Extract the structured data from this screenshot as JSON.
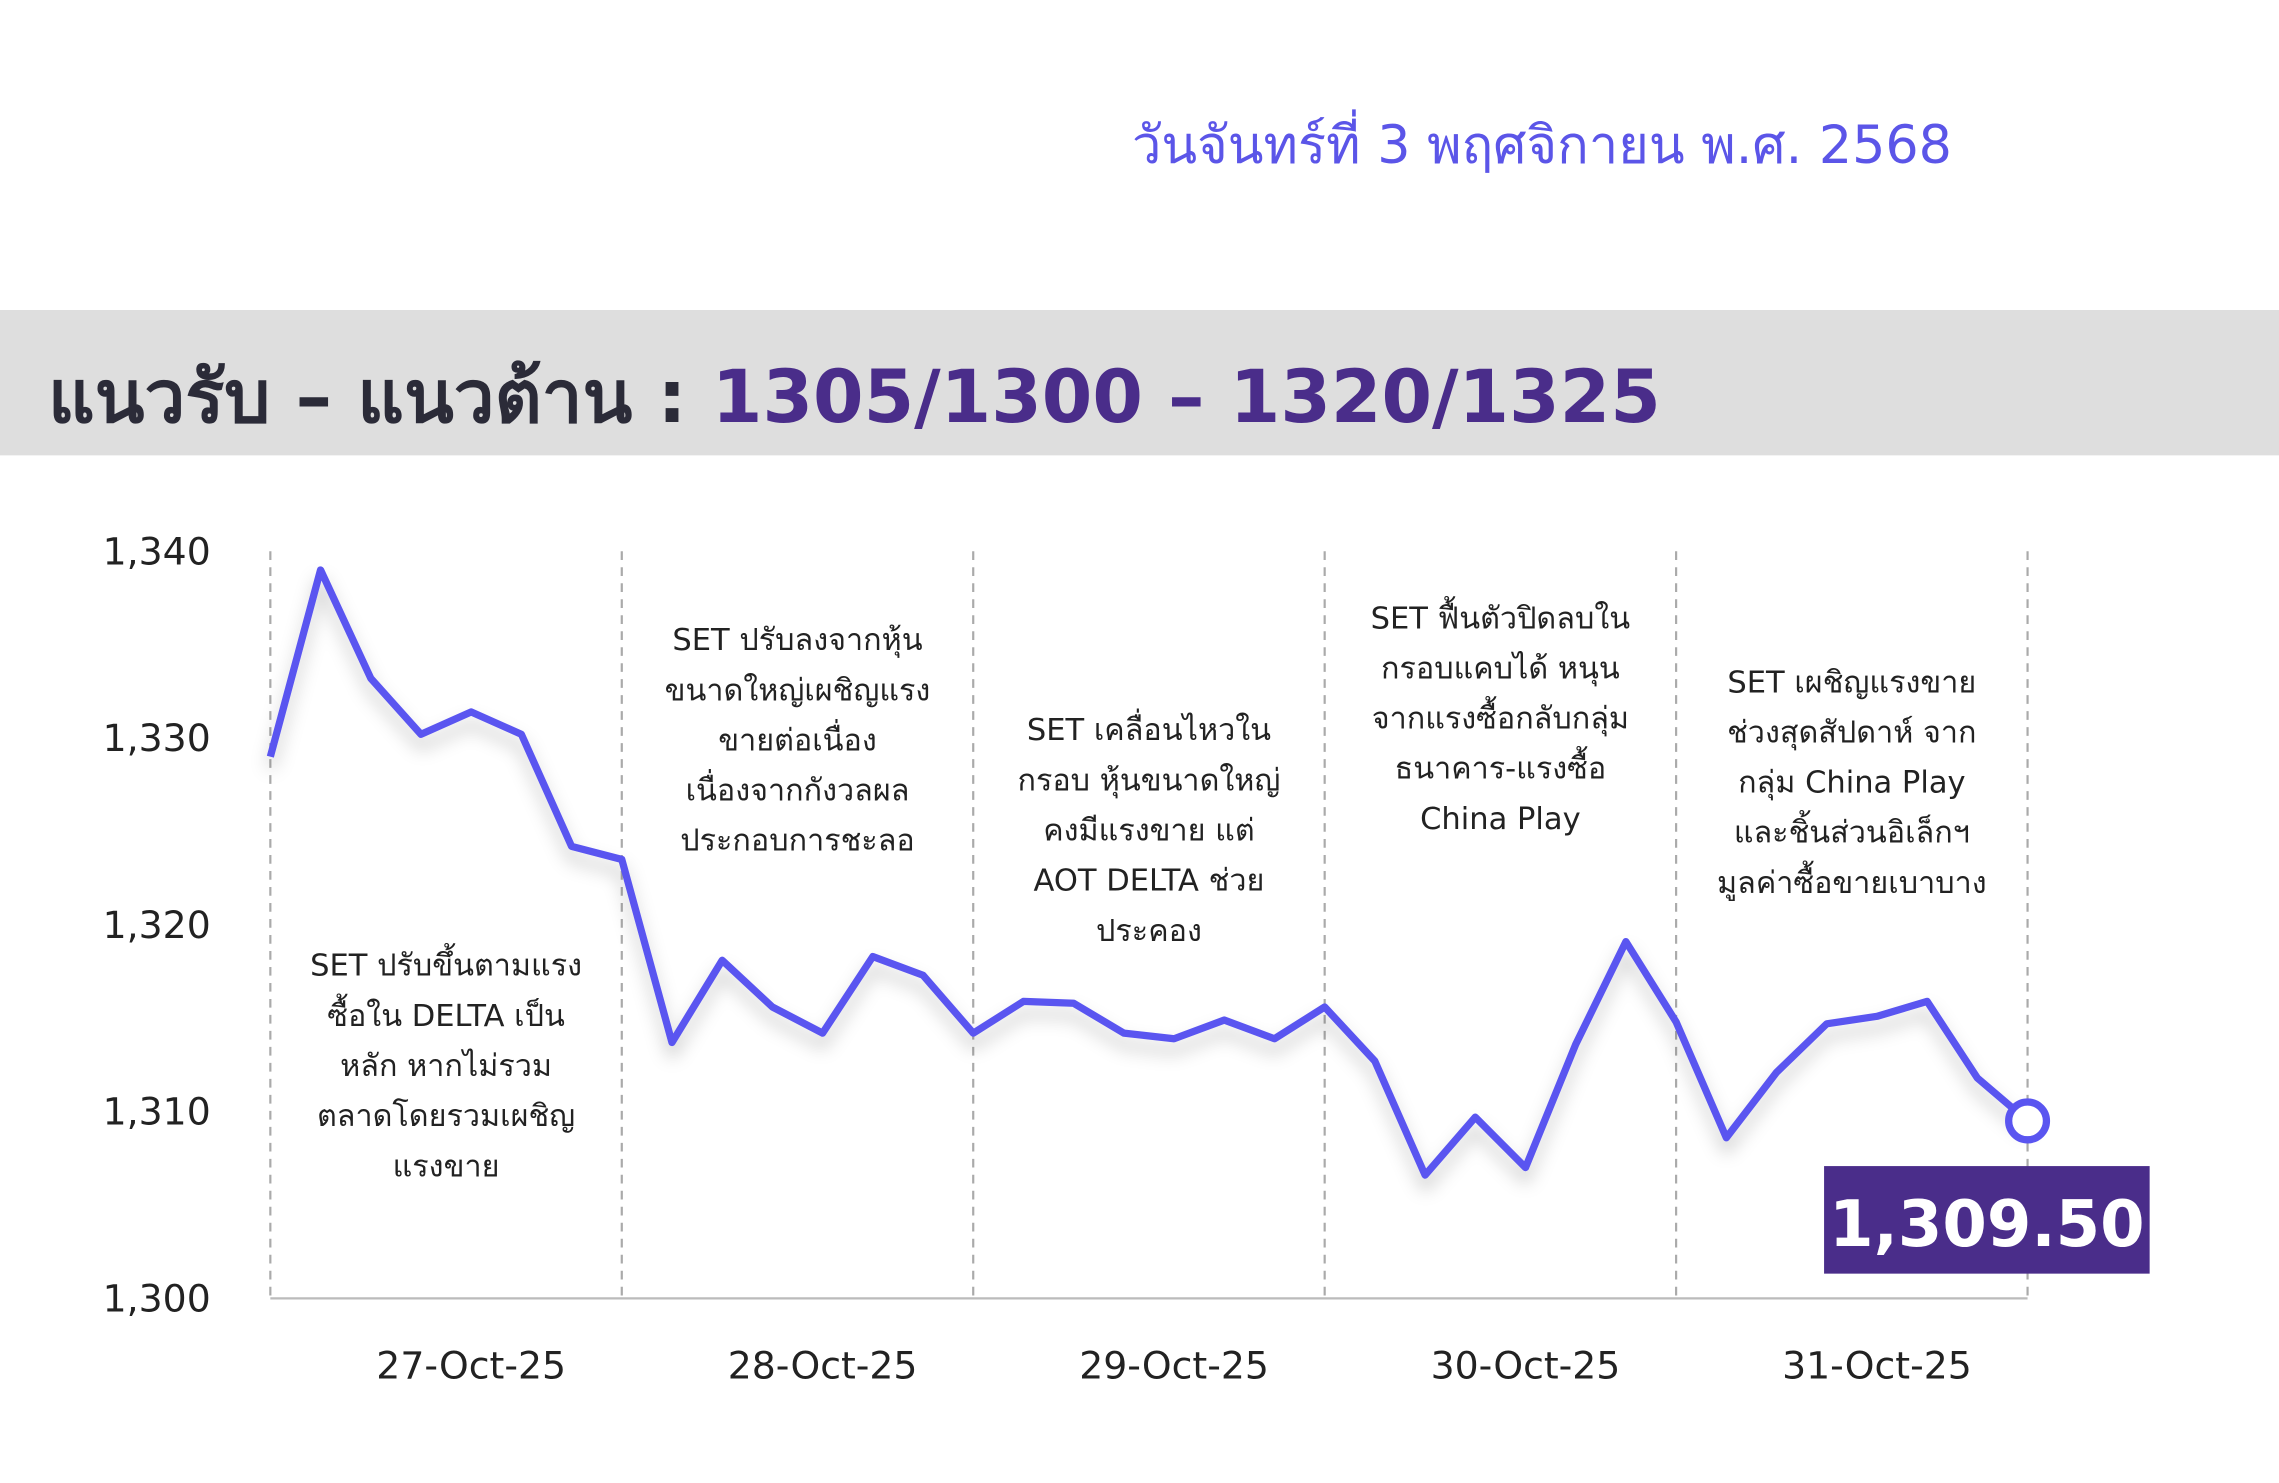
{
  "header": {
    "date": "วันจันทร์ที่ 3 พฤศจิกายน พ.ศ. 2568",
    "banner_label": "แนวรับ – แนวต้าน : ",
    "banner_value": "1305/1300 – 1320/1325"
  },
  "chart_data": {
    "type": "line",
    "categories": [
      null,
      null,
      null,
      null,
      "27-Oct-25",
      null,
      null,
      null,
      null,
      null,
      null,
      "28-Oct-25",
      null,
      null,
      null,
      null,
      null,
      null,
      "29-Oct-25",
      null,
      null,
      null,
      null,
      null,
      null,
      "30-Oct-25",
      null,
      null,
      null,
      null,
      null,
      null,
      "31-Oct-25",
      null,
      null,
      null
    ],
    "values": [
      1329.0,
      1339.0,
      1333.2,
      1330.2,
      1331.4,
      1330.2,
      1324.2,
      1323.5,
      1313.7,
      1318.1,
      1315.6,
      1314.2,
      1318.3,
      1317.3,
      1314.2,
      1315.9,
      1315.8,
      1314.2,
      1313.9,
      1314.9,
      1313.9,
      1315.6,
      1312.7,
      1306.6,
      1309.7,
      1307.0,
      1313.6,
      1319.1,
      1314.8,
      1308.6,
      1312.1,
      1314.7,
      1315.1,
      1315.9,
      1311.8,
      1309.5
    ],
    "value_labels": [
      null,
      null,
      null,
      null,
      null,
      null,
      null,
      null,
      null,
      null,
      null,
      null,
      null,
      null,
      null,
      null,
      null,
      null,
      null,
      null,
      null,
      null,
      null,
      null,
      null,
      null,
      null,
      null,
      null,
      null,
      null,
      null,
      null,
      null,
      null,
      "1,309.50"
    ],
    "color": "#5a55f0",
    "ylim": [
      1300,
      1340
    ],
    "yticks": [
      {
        "value": 1300,
        "label": "1,300"
      },
      {
        "value": 1310,
        "label": "1,310"
      },
      {
        "value": 1320,
        "label": "1,320"
      },
      {
        "value": 1330,
        "label": "1,330"
      },
      {
        "value": 1340,
        "label": "1,340"
      }
    ],
    "annotations": [
      [
        "SET ปรับขึ้นตามแรง",
        "ซื้อใน DELTA เป็น",
        "หลัก หากไม่รวม",
        "ตลาดโดยรวมเผชิญ",
        "แรงขาย"
      ],
      [
        "SET ปรับลงจากหุ้น",
        "ขนาดใหญ่เผชิญแรง",
        "ขายต่อเนื่อง",
        "เนื่องจากกังวลผล",
        "ประกอบการชะลอ"
      ],
      [
        "SET เคลื่อนไหวใน",
        "กรอบ หุ้นขนาดใหญ่",
        "คงมีแรงขาย แต่",
        "AOT DELTA ช่วย",
        "ประคอง"
      ],
      [
        "SET ฟื้นตัวปิดลบใน",
        "กรอบแคบได้ หนุน",
        "จากแรงซื้อกลับกลุ่ม",
        "ธนาคาร-แรงซื้อ",
        "China Play"
      ],
      [
        "SET เผชิญแรงขาย",
        "ช่วงสุดสัปดาห์ จาก",
        "กลุ่ม China Play",
        "และชิ้นส่วนอิเล็กฯ",
        "มูลค่าซื้อขายเบาบาง"
      ]
    ]
  }
}
